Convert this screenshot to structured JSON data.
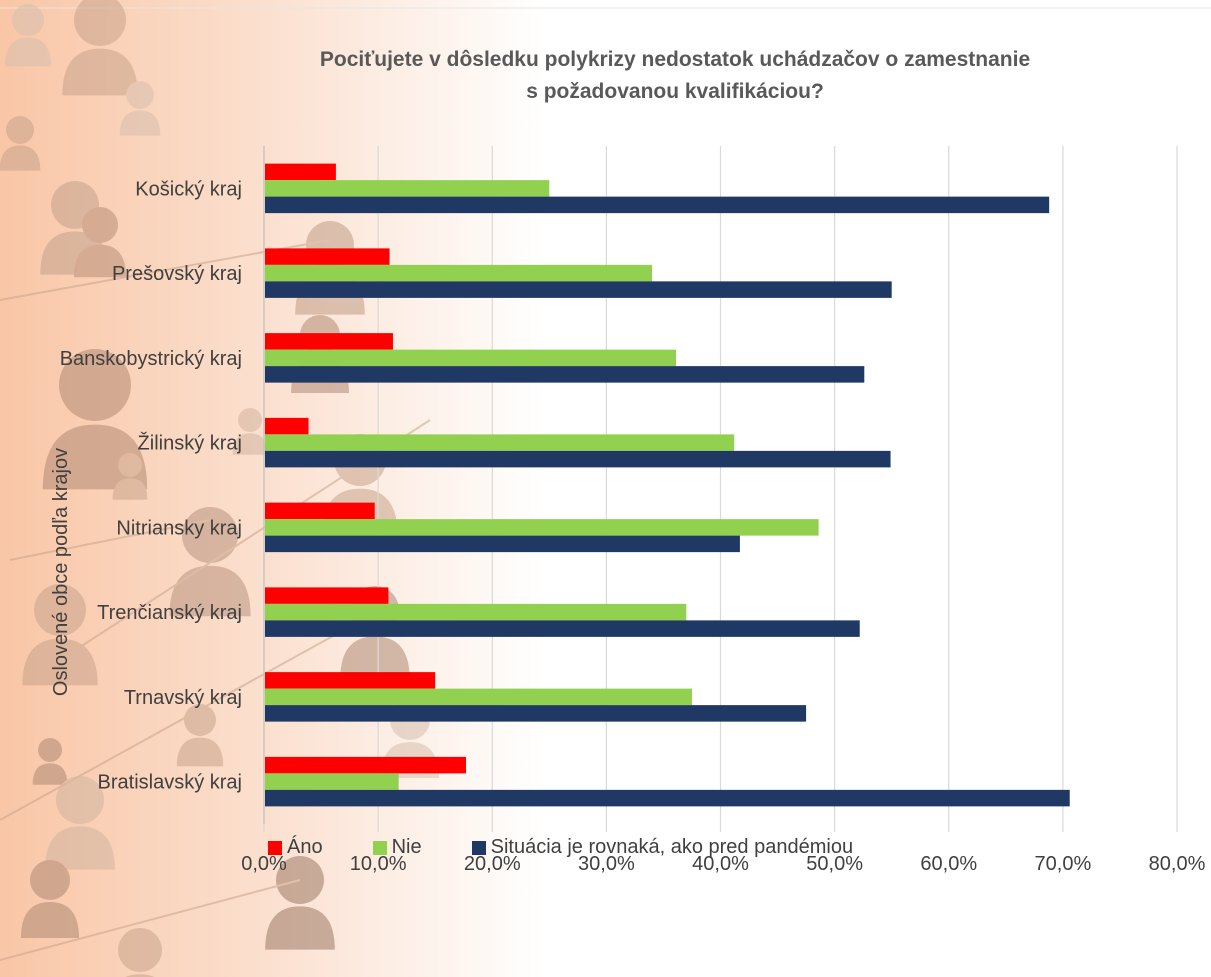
{
  "chart_data": {
    "type": "bar",
    "orientation": "horizontal",
    "title_lines": [
      "Pociťujete v dôsledku polykrizy nedostatok uchádzačov o zamestnanie",
      "s požadovanou kvalifikáciou?"
    ],
    "ylabel": "Oslovené obce podľa krajov",
    "xlabel": "",
    "categories": [
      "Košický kraj",
      "Prešovský kraj",
      "Banskobystrický kraj",
      "Žilinský kraj",
      "Nitriansky kraj",
      "Trenčianský kraj",
      "Trnavský kraj",
      "Bratislavský kraj"
    ],
    "series": [
      {
        "name": "Áno",
        "color": "#ff0000",
        "values": [
          6.3,
          11.0,
          11.3,
          3.9,
          9.7,
          10.9,
          15.0,
          17.7
        ]
      },
      {
        "name": "Nie",
        "color": "#92d050",
        "values": [
          25.0,
          34.0,
          36.1,
          41.2,
          48.6,
          37.0,
          37.5,
          11.8
        ]
      },
      {
        "name": "Situácia je rovnaká, ako pred pandémiou",
        "color": "#1f3864",
        "values": [
          68.8,
          55.0,
          52.6,
          54.9,
          41.7,
          52.2,
          47.5,
          70.6
        ]
      }
    ],
    "xlim": [
      0,
      80
    ],
    "xticks": [
      "0,0%",
      "10,0%",
      "20,0%",
      "30,0%",
      "40,0%",
      "50,0%",
      "60,0%",
      "70,0%",
      "80,0%"
    ],
    "grid": true,
    "legend_position": "bottom"
  }
}
